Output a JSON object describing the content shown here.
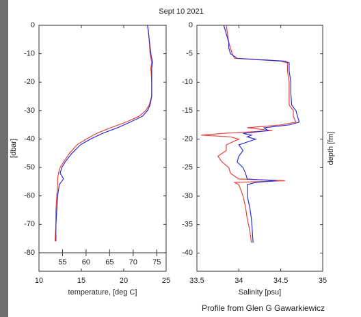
{
  "title": "Sept 10  2021",
  "footer": "Profile from Glen G Gawarkiewicz",
  "chart_data": [
    {
      "type": "line",
      "xlabel": "temperature, [deg C]",
      "ylabel": "[dbar]",
      "xlim": [
        10,
        25
      ],
      "xticks": [
        10,
        15,
        20,
        25
      ],
      "ylim": [
        -86.5,
        0
      ],
      "yticks": [
        0,
        -10,
        -20,
        -30,
        -40,
        -50,
        -60,
        -70,
        -80
      ],
      "x2lim": [
        50,
        77
      ],
      "x2ticks": [
        55,
        60,
        65,
        70,
        75
      ],
      "depth": [
        0,
        -2,
        -5,
        -10,
        -13,
        -15,
        -20,
        -25,
        -28,
        -30,
        -32,
        -34,
        -36,
        -38,
        -40,
        -42,
        -45,
        -48,
        -50,
        -52,
        -54,
        -56,
        -60,
        -65,
        -70,
        -76
      ],
      "series": [
        {
          "color": "#e8403a",
          "values": [
            22.8,
            22.9,
            23.0,
            23.1,
            23.3,
            23.2,
            23.3,
            23.3,
            23.0,
            22.6,
            21.8,
            20.3,
            18.5,
            16.8,
            15.6,
            14.5,
            13.6,
            12.9,
            12.5,
            12.3,
            12.2,
            12.2,
            12.1,
            12.0,
            12.0,
            11.9
          ]
        },
        {
          "color": "#2b2bd9",
          "values": [
            22.8,
            22.9,
            23.0,
            23.2,
            23.4,
            23.3,
            23.3,
            23.3,
            23.1,
            22.8,
            22.2,
            20.8,
            19.3,
            17.5,
            16.1,
            14.9,
            13.9,
            13.1,
            12.7,
            12.5,
            12.9,
            12.4,
            12.2,
            12.1,
            12.0,
            12.0
          ]
        }
      ]
    },
    {
      "type": "line",
      "xlabel": "Salinity [psu]",
      "ylabel": "depth [fm]",
      "xlim": [
        33.5,
        35
      ],
      "xticks": [
        33.5,
        34,
        34.5,
        35
      ],
      "ylim": [
        -43.2,
        0
      ],
      "yticks": [
        0,
        -5,
        -10,
        -15,
        -20,
        -25,
        -30,
        -35,
        -40
      ],
      "depth": [
        0,
        -1,
        -2,
        -3,
        -4,
        -5,
        -5.8,
        -6.3,
        -6.6,
        -8,
        -10,
        -12,
        -14,
        -15,
        -16,
        -17,
        -17.5,
        -18,
        -18.5,
        -19,
        -19.3,
        -19.6,
        -20,
        -21,
        -22,
        -23,
        -24,
        -25,
        -26,
        -27,
        -27.3,
        -27.6,
        -28,
        -30,
        -32,
        -34,
        -36,
        -38.2
      ],
      "series": [
        {
          "color": "#e8403a",
          "values": [
            33.85,
            33.86,
            33.87,
            33.88,
            33.9,
            33.92,
            33.95,
            34.5,
            34.58,
            34.58,
            34.6,
            34.6,
            34.6,
            34.65,
            34.65,
            34.68,
            34.5,
            34.1,
            34.4,
            33.8,
            33.55,
            33.9,
            34.0,
            33.85,
            33.85,
            33.75,
            33.8,
            33.88,
            33.9,
            34.0,
            34.55,
            33.95,
            34.0,
            34.05,
            34.08,
            34.1,
            34.13,
            34.15
          ]
        },
        {
          "color": "#2b2bd9",
          "values": [
            33.82,
            33.84,
            33.86,
            33.88,
            33.88,
            33.9,
            33.98,
            34.55,
            34.6,
            34.6,
            34.62,
            34.62,
            34.63,
            34.68,
            34.7,
            34.72,
            34.6,
            34.3,
            34.35,
            34.05,
            34.15,
            34.1,
            34.2,
            34.0,
            34.05,
            34.0,
            33.98,
            34.05,
            34.08,
            34.1,
            34.45,
            34.2,
            34.1,
            34.1,
            34.13,
            34.15,
            34.16,
            34.17
          ]
        }
      ]
    }
  ]
}
